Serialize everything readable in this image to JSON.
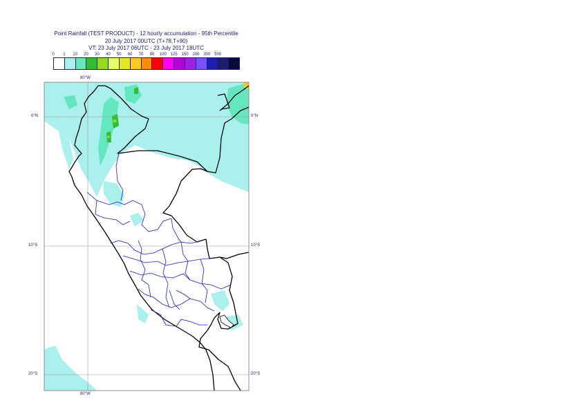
{
  "title": {
    "line1": "Point Rainfall (TEST PRODUCT) - 12 hourly accumulation - 95th Percentile",
    "line2": "20 July 2017 00UTC (T+78,T+90)",
    "line3": "VT: 23 July 2017 06UTC - 23 July 2017 18UTC"
  },
  "legend": {
    "ticks": [
      "0",
      "1",
      "10",
      "20",
      "30",
      "40",
      "50",
      "60",
      "70",
      "80",
      "100",
      "125",
      "150",
      "200",
      "300",
      "500"
    ],
    "colors": [
      "#ffffff",
      "#aaf0ec",
      "#64e6be",
      "#32be32",
      "#96dc1e",
      "#e6ff64",
      "#e6e61e",
      "#ffc81e",
      "#ff8c00",
      "#ff0000",
      "#ff00ff",
      "#b400dc",
      "#a020e6",
      "#7850ff",
      "#1e1eb4",
      "#1e1e6e",
      "#0a0a3c"
    ]
  },
  "map": {
    "labels": {
      "lon_top": "80°W",
      "lon_bottom": "80°W",
      "lat_0_left": "0°N",
      "lat_0_right": "0°N",
      "lat_10_left": "10°S",
      "lat_10_right": "10°S",
      "lat_20_left": "20°S",
      "lat_20_right": "20°S"
    }
  }
}
